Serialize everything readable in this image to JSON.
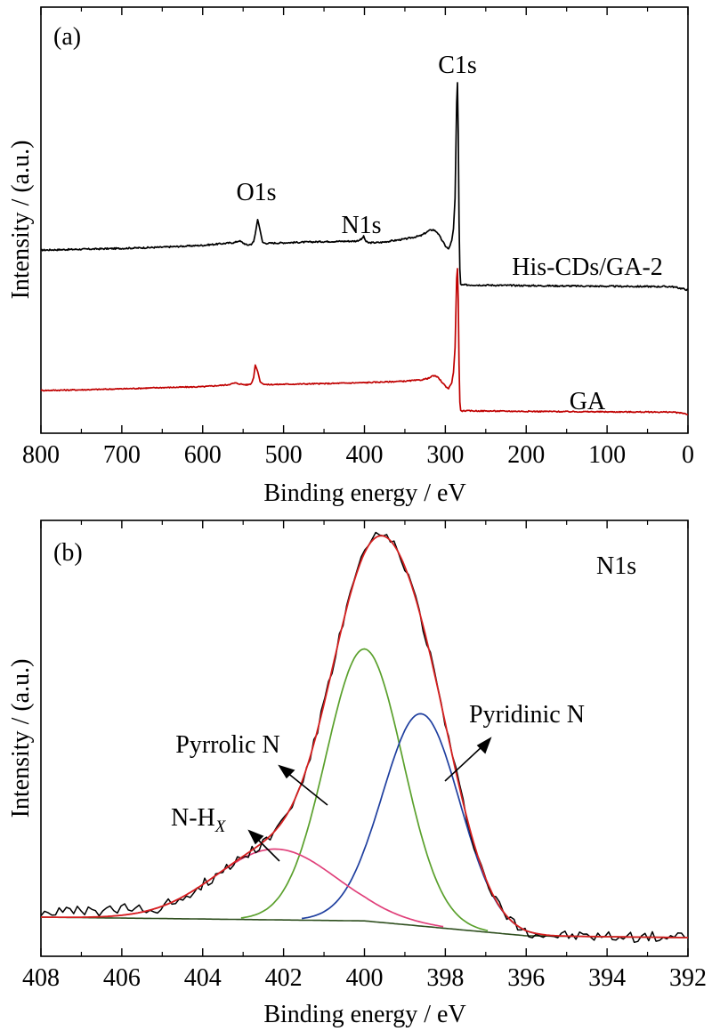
{
  "chart_data": [
    {
      "panel_label": "(a)",
      "type": "line",
      "xlabel": "Binding energy / eV",
      "ylabel": "Intensity / (a.u.)",
      "xlim": [
        800,
        0
      ],
      "x_ticks": [
        800,
        700,
        600,
        500,
        400,
        300,
        200,
        100,
        0
      ],
      "grid": false,
      "y_ticks_shown": false,
      "series": [
        {
          "name": "His-CDs/GA-2",
          "color": "#000000",
          "x": [
            800,
            750,
            700,
            650,
            600,
            560,
            555,
            545,
            540,
            537,
            535,
            532,
            529,
            526,
            522,
            500,
            450,
            410,
            404,
            401,
            398,
            395,
            380,
            350,
            330,
            320,
            315,
            310,
            305,
            300,
            296,
            292,
            290,
            288,
            286,
            285,
            284,
            283,
            282,
            281,
            280,
            270,
            200,
            100,
            20,
            5,
            0
          ],
          "y": [
            1.5,
            2.0,
            2.5,
            3.2,
            4.3,
            6.0,
            7.0,
            4.4,
            5.0,
            6.5,
            11,
            19.5,
            13,
            6.0,
            5.5,
            5.8,
            6.5,
            6.8,
            7.8,
            9.5,
            6.5,
            5.8,
            6.0,
            8.0,
            10,
            13,
            13.5,
            12,
            8,
            4,
            2,
            7,
            14,
            32,
            88,
            100,
            70,
            18,
            -10,
            -18.5,
            -19,
            -19,
            -19.4,
            -19.8,
            -20,
            -21.4,
            -22
          ]
        },
        {
          "name": "GA",
          "color": "#c00000",
          "x": [
            800,
            750,
            700,
            650,
            600,
            570,
            560,
            550,
            545,
            540,
            537,
            535,
            532,
            529,
            526,
            520,
            500,
            450,
            400,
            350,
            330,
            320,
            315,
            310,
            305,
            300,
            296,
            292,
            290,
            288,
            286,
            285,
            284,
            283,
            282,
            281,
            280,
            270,
            200,
            100,
            20,
            5,
            0
          ],
          "y": [
            1.5,
            2.0,
            2.8,
            3.8,
            4.5,
            6.0,
            7.5,
            6.3,
            6.0,
            7.0,
            12,
            22,
            17,
            8.5,
            7.0,
            6.2,
            6.5,
            7.0,
            7.8,
            9.0,
            10,
            11.5,
            13.5,
            12.5,
            9,
            5,
            3,
            8,
            16,
            36,
            92,
            100,
            74,
            22,
            -8,
            -14.5,
            -15,
            -15,
            -15.4,
            -15.8,
            -16,
            -17,
            -18
          ]
        }
      ],
      "annotations": [
        {
          "text": "C1s",
          "x": 285
        },
        {
          "text": "O1s",
          "x": 532
        },
        {
          "text": "N1s",
          "x": 400
        },
        {
          "text": "His-CDs/GA-2",
          "series": "His-CDs/GA-2"
        },
        {
          "text": "GA",
          "series": "GA"
        }
      ]
    },
    {
      "panel_label": "(b)",
      "type": "line",
      "title": "N1s",
      "xlabel": "Binding energy / eV",
      "ylabel": "Intensity / (a.u.)",
      "xlim": [
        408,
        392
      ],
      "ylim": [
        -0.05,
        1.12
      ],
      "x_ticks": [
        408,
        406,
        404,
        402,
        400,
        398,
        396,
        394,
        392
      ],
      "grid": false,
      "y_ticks_shown": false,
      "components": [
        {
          "label": "Pyrrolic N",
          "color": "#5aa02c",
          "center": 400.0,
          "height": 0.73,
          "sigma": 0.95
        },
        {
          "label": "Pyridinic N",
          "color": "#1f3f9f",
          "center": 398.6,
          "height": 0.57,
          "sigma": 0.95
        },
        {
          "label": "N-HX",
          "color": "#e0407a",
          "center": 402.2,
          "height": 0.19,
          "sigma": 1.5
        }
      ],
      "baseline": {
        "color": "#2f4f1f",
        "x": [
          408,
          400,
          396,
          392
        ],
        "y": [
          0.055,
          0.045,
          0.005,
          0.0
        ]
      },
      "envelope_color": "#d62020",
      "raw_color": "#000000",
      "annotations": [
        {
          "text": "Pyrrolic N",
          "component": "Pyrrolic N"
        },
        {
          "text": "Pyridinic N",
          "component": "Pyridinic N"
        },
        {
          "text_main": "N-H",
          "text_sub": "X",
          "component": "N-HX"
        }
      ]
    }
  ]
}
